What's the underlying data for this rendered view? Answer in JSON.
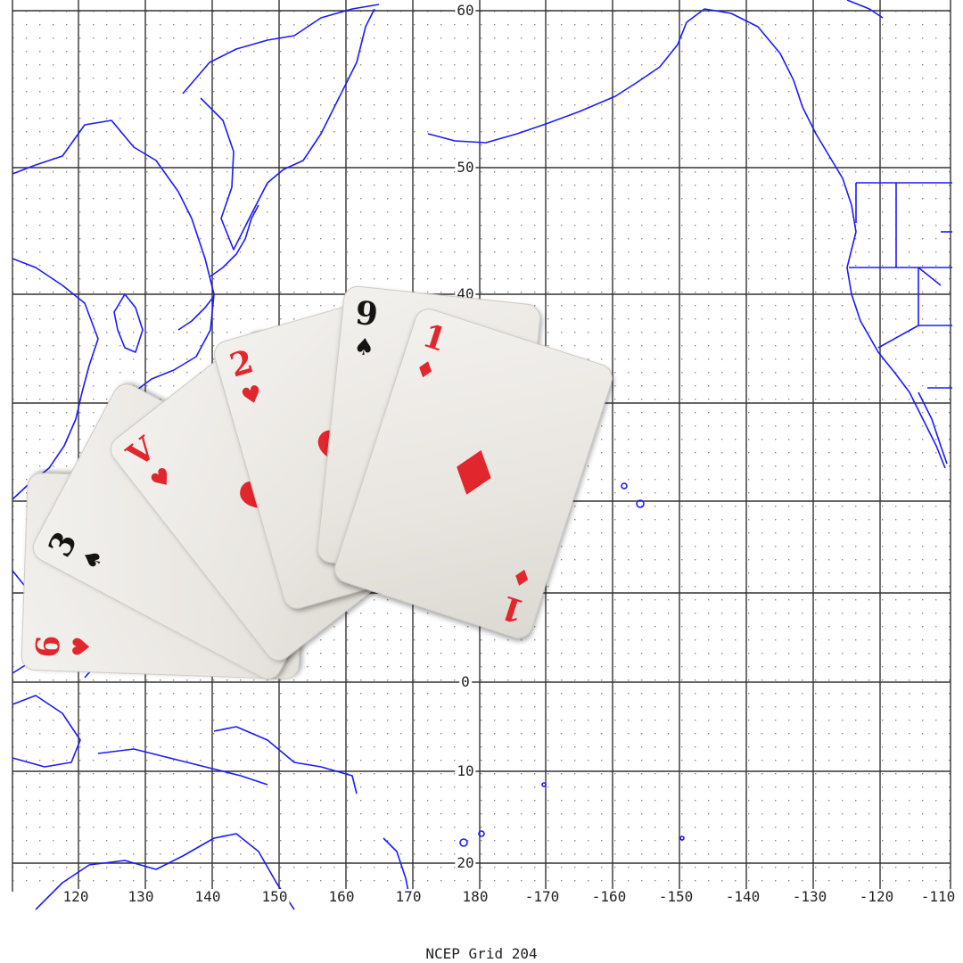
{
  "map": {
    "caption": "NCEP Grid 204",
    "latitude_labels": [
      "60",
      "50",
      "40",
      "0",
      "10",
      "20"
    ],
    "longitude_labels": [
      "120",
      "130",
      "140",
      "150",
      "160",
      "170",
      "180",
      "-170",
      "-160",
      "-150",
      "-140",
      "-130",
      "-120",
      "-110"
    ],
    "colors": {
      "coastline": "#1a1aff",
      "grid": "#222222",
      "background": "#ffffff"
    }
  },
  "cards": [
    {
      "rank": "6",
      "suit": "heart",
      "color": "#e1262d"
    },
    {
      "rank": "3",
      "suit": "spade",
      "color": "#141414"
    },
    {
      "rank": "V",
      "suit": "heart",
      "color": "#e1262d"
    },
    {
      "rank": "2",
      "suit": "heart",
      "color": "#e1262d"
    },
    {
      "rank": "9",
      "suit": "spade",
      "color": "#141414"
    },
    {
      "rank": "1",
      "suit": "diamond",
      "color": "#e1262d"
    }
  ]
}
